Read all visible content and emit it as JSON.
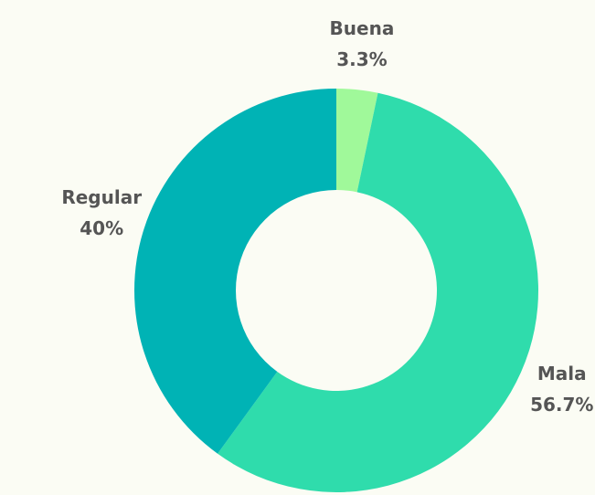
{
  "chart_data": {
    "type": "donut",
    "categories": [
      "Buena",
      "Mala",
      "Regular"
    ],
    "values": [
      3.3,
      56.7,
      40
    ],
    "value_labels": [
      "3.3%",
      "56.7%",
      "40%"
    ],
    "colors": [
      "#a0f99a",
      "#2fdcac",
      "#00b3b5"
    ]
  }
}
